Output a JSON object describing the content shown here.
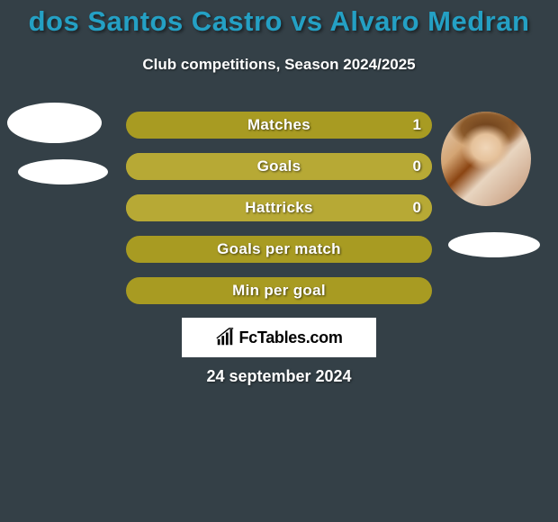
{
  "title": "dos Santos Castro vs Alvaro Medran",
  "subtitle": "Club competitions, Season 2024/2025",
  "date": "24 september 2024",
  "logo_text": "FcTables.com",
  "colors": {
    "background": "#344047",
    "title": "#24a0c4",
    "subtitle": "#ffffff",
    "date": "#ffffff",
    "bar_default": "#a89b22",
    "bar_left": "#b7a935",
    "bar_right": "#b7a935",
    "bar_label": "#ffffff"
  },
  "bars": [
    {
      "label": "Matches",
      "left_value": "",
      "right_value": "1",
      "left_pct": 0,
      "right_pct": 100
    },
    {
      "label": "Goals",
      "left_value": "",
      "right_value": "0",
      "left_pct": 50,
      "right_pct": 50
    },
    {
      "label": "Hattricks",
      "left_value": "",
      "right_value": "0",
      "left_pct": 50,
      "right_pct": 50
    },
    {
      "label": "Goals per match",
      "left_value": "",
      "right_value": "",
      "left_pct": 0,
      "right_pct": 100
    },
    {
      "label": "Min per goal",
      "left_value": "",
      "right_value": "",
      "left_pct": 0,
      "right_pct": 100
    }
  ],
  "avatars": {
    "left": {
      "has_photo": false
    },
    "right": {
      "has_photo": true
    }
  }
}
